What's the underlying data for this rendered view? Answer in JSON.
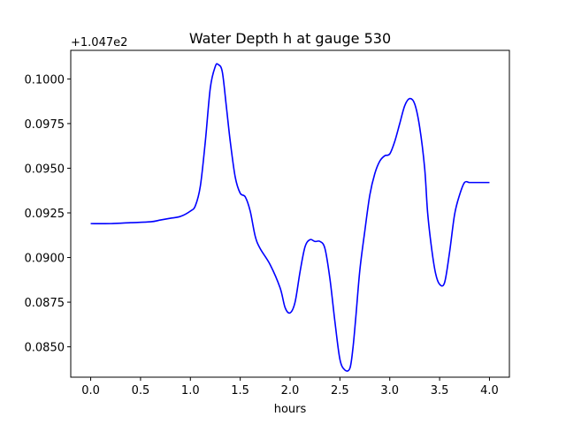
{
  "chart_data": {
    "type": "line",
    "title": "Water Depth h at gauge 530",
    "xlabel": "hours",
    "ylabel": "",
    "offset_label": "+1.047e2",
    "xlim": [
      -0.2,
      4.2
    ],
    "ylim": [
      0.0833,
      0.1016
    ],
    "xticks": [
      0.0,
      0.5,
      1.0,
      1.5,
      2.0,
      2.5,
      3.0,
      3.5,
      4.0
    ],
    "xtick_labels": [
      "0.0",
      "0.5",
      "1.0",
      "1.5",
      "2.0",
      "2.5",
      "3.0",
      "3.5",
      "4.0"
    ],
    "yticks": [
      0.085,
      0.0875,
      0.09,
      0.0925,
      0.095,
      0.0975,
      0.1
    ],
    "ytick_labels": [
      "0.0850",
      "0.0875",
      "0.0900",
      "0.0925",
      "0.0950",
      "0.0975",
      "0.1000"
    ],
    "grid": false,
    "series": [
      {
        "name": "",
        "color": "#0000ff",
        "x": [
          0.0,
          0.2,
          0.4,
          0.6,
          0.7,
          0.8,
          0.9,
          1.0,
          1.05,
          1.1,
          1.15,
          1.2,
          1.25,
          1.28,
          1.32,
          1.36,
          1.4,
          1.45,
          1.5,
          1.55,
          1.6,
          1.65,
          1.7,
          1.8,
          1.9,
          1.95,
          2.0,
          2.05,
          2.1,
          2.15,
          2.2,
          2.25,
          2.3,
          2.35,
          2.4,
          2.45,
          2.5,
          2.55,
          2.6,
          2.63,
          2.66,
          2.7,
          2.75,
          2.8,
          2.85,
          2.9,
          2.95,
          3.0,
          3.05,
          3.1,
          3.15,
          3.2,
          3.25,
          3.3,
          3.35,
          3.38,
          3.42,
          3.46,
          3.5,
          3.55,
          3.6,
          3.65,
          3.7,
          3.75,
          3.8,
          3.85,
          3.9,
          3.95,
          4.0
        ],
        "y": [
          0.0919,
          0.0919,
          0.09195,
          0.092,
          0.0921,
          0.0922,
          0.0923,
          0.0926,
          0.0929,
          0.094,
          0.0965,
          0.0995,
          0.1007,
          0.1008,
          0.1004,
          0.0985,
          0.0965,
          0.0945,
          0.0936,
          0.0934,
          0.0926,
          0.0912,
          0.0905,
          0.0896,
          0.0883,
          0.0872,
          0.0869,
          0.0875,
          0.0892,
          0.0906,
          0.091,
          0.0909,
          0.0909,
          0.0905,
          0.0888,
          0.0864,
          0.0843,
          0.0837,
          0.0838,
          0.0849,
          0.0867,
          0.0893,
          0.0915,
          0.0935,
          0.0947,
          0.0954,
          0.0957,
          0.0958,
          0.0965,
          0.0975,
          0.0985,
          0.0989,
          0.0986,
          0.0973,
          0.095,
          0.0925,
          0.0905,
          0.0891,
          0.0885,
          0.0886,
          0.0903,
          0.0924,
          0.0935,
          0.0942,
          0.0942,
          0.0942,
          0.0942,
          0.0942,
          0.0942
        ]
      }
    ]
  }
}
